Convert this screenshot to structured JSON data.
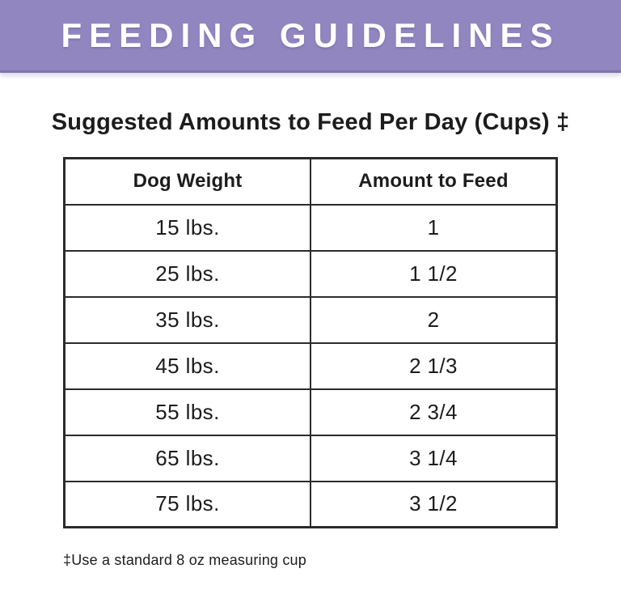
{
  "banner": {
    "title": "FEEDING GUIDELINES"
  },
  "heading": {
    "title": "Suggested Amounts to Feed Per Day (Cups) ‡"
  },
  "table": {
    "columns": [
      "Dog Weight",
      "Amount to Feed"
    ],
    "rows": [
      {
        "weight": "15 lbs.",
        "amount": "1"
      },
      {
        "weight": "25 lbs.",
        "amount": "1 1/2"
      },
      {
        "weight": "35 lbs.",
        "amount": "2"
      },
      {
        "weight": "45 lbs.",
        "amount": "2 1/3"
      },
      {
        "weight": "55 lbs.",
        "amount": "2 3/4"
      },
      {
        "weight": "65 lbs.",
        "amount": "3 1/4"
      },
      {
        "weight": "75 lbs.",
        "amount": "3 1/2"
      }
    ]
  },
  "footnote": {
    "text": "‡Use a standard 8 oz measuring cup"
  },
  "colors": {
    "banner_purple": "#9186C0",
    "banner_edge": "#7E73AB",
    "banner_text": "#FFFFFF",
    "text_black": "#1C1C1C",
    "table_border": "#2B2B2B",
    "background": "#FFFFFF"
  }
}
